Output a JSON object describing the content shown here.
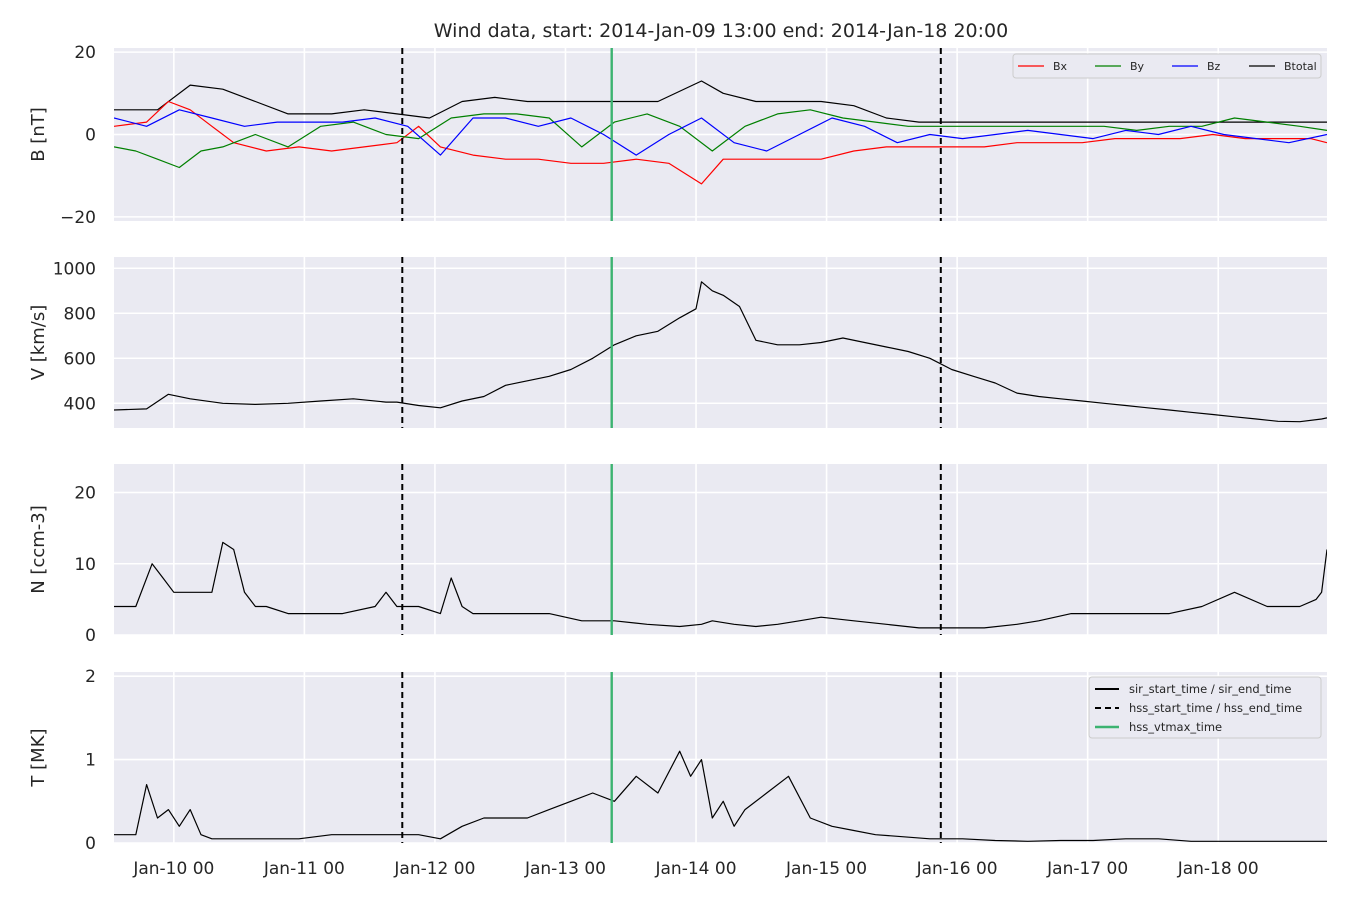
{
  "title": "Wind data, start: 2014-Jan-09 13:00  end: 2014-Jan-18 20:00",
  "colors": {
    "panel_bg": "#eaeaf2",
    "grid": "#ffffff",
    "bx": "#ff0000",
    "by": "#008000",
    "bz": "#0000ff",
    "btotal": "#000000",
    "series": "#000000",
    "vtmax": "#3cb371",
    "hss": "#000000"
  },
  "chart_data": {
    "type": "line",
    "x_range": [
      "2014-01-09 13:00",
      "2014-01-18 20:00"
    ],
    "x_ticks": [
      "Jan-10 00",
      "Jan-11 00",
      "Jan-12 00",
      "Jan-13 00",
      "Jan-14 00",
      "Jan-15 00",
      "Jan-16 00",
      "Jan-17 00",
      "Jan-18 00"
    ],
    "events": {
      "hss_start_time": "2014-01-11 18:00",
      "hss_end_time": "2014-01-15 21:00",
      "hss_vtmax_time": "2014-01-13 08:30"
    },
    "legend_events": [
      {
        "style": "solid",
        "label": "sir_start_time / sir_end_time"
      },
      {
        "style": "dashed",
        "label": "hss_start_time / hss_end_time"
      },
      {
        "style": "green",
        "label": "hss_vtmax_time"
      }
    ],
    "panels": [
      {
        "ylabel": "B [nT]",
        "ylim": [
          -21,
          21
        ],
        "yticks": [
          20,
          0,
          -20
        ],
        "ytick_labels": [
          "20",
          "0",
          "−20"
        ],
        "legend": [
          "Bx",
          "By",
          "Bz",
          "Btotal"
        ],
        "series": [
          {
            "name": "Btotal",
            "x": [
              0,
              8,
              14,
              20,
              26,
              32,
              40,
              46,
              52,
              58,
              64,
              70,
              76,
              82,
              88,
              94,
              100,
              108,
              112,
              118,
              124,
              130,
              136,
              142,
              148,
              154,
              160,
              166,
              172,
              178,
              184,
              190,
              196,
              202,
              208,
              214,
              220,
              223
            ],
            "y": [
              6,
              6,
              12,
              11,
              8,
              5,
              5,
              6,
              5,
              4,
              8,
              9,
              8,
              8,
              8,
              8,
              8,
              13,
              10,
              8,
              8,
              8,
              7,
              4,
              3,
              3,
              3,
              3,
              3,
              3,
              3,
              3,
              3,
              3,
              3,
              3,
              3,
              3
            ]
          },
          {
            "name": "Bx",
            "x": [
              0,
              6,
              10,
              14,
              18,
              22,
              28,
              34,
              40,
              46,
              52,
              56,
              60,
              66,
              72,
              78,
              84,
              90,
              96,
              102,
              108,
              112,
              118,
              124,
              130,
              136,
              142,
              148,
              154,
              160,
              166,
              172,
              178,
              184,
              190,
              196,
              202,
              208,
              214,
              220,
              223
            ],
            "y": [
              2,
              3,
              8,
              6,
              2,
              -2,
              -4,
              -3,
              -4,
              -3,
              -2,
              2,
              -3,
              -5,
              -6,
              -6,
              -7,
              -7,
              -6,
              -7,
              -12,
              -6,
              -6,
              -6,
              -6,
              -4,
              -3,
              -3,
              -3,
              -3,
              -2,
              -2,
              -2,
              -1,
              -1,
              -1,
              0,
              -1,
              -1,
              -1,
              -2
            ]
          },
          {
            "name": "By",
            "x": [
              0,
              4,
              8,
              12,
              16,
              20,
              26,
              32,
              38,
              44,
              50,
              56,
              62,
              68,
              74,
              80,
              86,
              92,
              98,
              104,
              110,
              116,
              122,
              128,
              134,
              140,
              146,
              152,
              158,
              164,
              170,
              176,
              182,
              188,
              194,
              200,
              206,
              212,
              218,
              223
            ],
            "y": [
              -3,
              -4,
              -6,
              -8,
              -4,
              -3,
              0,
              -3,
              2,
              3,
              0,
              -1,
              4,
              5,
              5,
              4,
              -3,
              3,
              5,
              2,
              -4,
              2,
              5,
              6,
              4,
              3,
              2,
              2,
              2,
              2,
              2,
              2,
              2,
              1,
              2,
              2,
              4,
              3,
              2,
              1
            ]
          },
          {
            "name": "Bz",
            "x": [
              0,
              6,
              12,
              18,
              24,
              30,
              36,
              42,
              48,
              54,
              60,
              66,
              72,
              78,
              84,
              90,
              96,
              102,
              108,
              114,
              120,
              126,
              132,
              138,
              144,
              150,
              156,
              162,
              168,
              174,
              180,
              186,
              192,
              198,
              204,
              210,
              216,
              223
            ],
            "y": [
              4,
              2,
              6,
              4,
              2,
              3,
              3,
              3,
              4,
              2,
              -5,
              4,
              4,
              2,
              4,
              0,
              -5,
              0,
              4,
              -2,
              -4,
              0,
              4,
              2,
              -2,
              0,
              -1,
              0,
              1,
              0,
              -1,
              1,
              0,
              2,
              0,
              -1,
              -2,
              0
            ]
          }
        ]
      },
      {
        "ylabel": "V [km/s]",
        "ylim": [
          290,
          1050
        ],
        "yticks": [
          1000,
          800,
          600,
          400
        ],
        "ytick_labels": [
          "1000",
          "800",
          "600",
          "400"
        ],
        "series": [
          {
            "name": "V",
            "x": [
              0,
              6,
              10,
              14,
              20,
              26,
              32,
              38,
              44,
              50,
              52,
              56,
              60,
              64,
              68,
              72,
              76,
              80,
              84,
              88,
              92,
              96,
              100,
              104,
              107,
              108,
              110,
              112,
              115,
              118,
              122,
              126,
              130,
              134,
              138,
              142,
              146,
              150,
              154,
              158,
              162,
              166,
              170,
              174,
              178,
              182,
              186,
              190,
              194,
              198,
              202,
              206,
              210,
              214,
              218,
              222,
              223
            ],
            "y": [
              370,
              375,
              440,
              420,
              400,
              395,
              400,
              410,
              420,
              405,
              405,
              390,
              380,
              410,
              430,
              480,
              500,
              520,
              550,
              600,
              660,
              700,
              720,
              780,
              820,
              940,
              900,
              880,
              830,
              680,
              660,
              660,
              670,
              690,
              670,
              650,
              630,
              600,
              550,
              520,
              490,
              445,
              430,
              420,
              410,
              400,
              390,
              380,
              370,
              360,
              350,
              340,
              330,
              320,
              318,
              330,
              335
            ]
          }
        ]
      },
      {
        "ylabel": "N [ccm-3]",
        "ylim": [
          0,
          24
        ],
        "yticks": [
          20,
          10,
          0
        ],
        "ytick_labels": [
          "20",
          "10",
          "0"
        ],
        "series": [
          {
            "name": "N",
            "x": [
              0,
              4,
              7,
              9,
              11,
              14,
              18,
              20,
              22,
              24,
              26,
              28,
              32,
              36,
              42,
              48,
              50,
              52,
              56,
              60,
              62,
              64,
              66,
              70,
              74,
              80,
              86,
              92,
              98,
              104,
              108,
              110,
              114,
              118,
              122,
              126,
              130,
              136,
              142,
              148,
              154,
              160,
              166,
              170,
              176,
              182,
              188,
              194,
              200,
              206,
              212,
              218,
              221,
              222,
              223
            ],
            "y": [
              4,
              4,
              10,
              8,
              6,
              6,
              6,
              13,
              12,
              6,
              4,
              4,
              3,
              3,
              3,
              4,
              6,
              4,
              4,
              3,
              8,
              4,
              3,
              3,
              3,
              3,
              2,
              2,
              1.5,
              1.2,
              1.5,
              2,
              1.5,
              1.2,
              1.5,
              2,
              2.5,
              2,
              1.5,
              1,
              1,
              1,
              1.5,
              2,
              3,
              3,
              3,
              3,
              4,
              6,
              4,
              4,
              5,
              6,
              12
            ]
          }
        ]
      },
      {
        "ylabel": "T [MK]",
        "ylim": [
          0,
          2.05
        ],
        "yticks": [
          2,
          1,
          0
        ],
        "ytick_labels": [
          "2",
          "1",
          "0"
        ],
        "series": [
          {
            "name": "T",
            "x": [
              0,
              4,
              6,
              8,
              10,
              12,
              14,
              16,
              18,
              22,
              28,
              34,
              40,
              46,
              50,
              56,
              60,
              64,
              68,
              72,
              76,
              80,
              84,
              88,
              92,
              96,
              100,
              104,
              106,
              108,
              110,
              112,
              114,
              116,
              120,
              124,
              128,
              132,
              136,
              140,
              144,
              150,
              156,
              162,
              168,
              174,
              180,
              186,
              192,
              198,
              204,
              210,
              216,
              223
            ],
            "y": [
              0.1,
              0.1,
              0.7,
              0.3,
              0.4,
              0.2,
              0.4,
              0.1,
              0.05,
              0.05,
              0.05,
              0.05,
              0.1,
              0.1,
              0.1,
              0.1,
              0.05,
              0.2,
              0.3,
              0.3,
              0.3,
              0.4,
              0.5,
              0.6,
              0.5,
              0.8,
              0.6,
              1.1,
              0.8,
              1.0,
              0.3,
              0.5,
              0.2,
              0.4,
              0.6,
              0.8,
              0.3,
              0.2,
              0.15,
              0.1,
              0.08,
              0.05,
              0.05,
              0.03,
              0.02,
              0.03,
              0.03,
              0.05,
              0.05,
              0.02,
              0.02,
              0.02,
              0.02,
              0.02
            ]
          }
        ]
      }
    ]
  }
}
